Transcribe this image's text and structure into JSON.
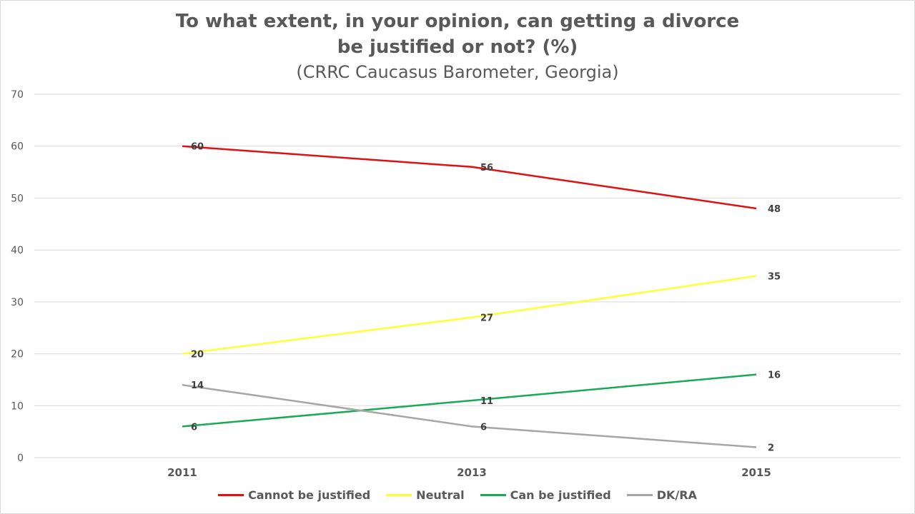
{
  "title_lines": [
    "To what extent, in your opinion, can getting a divorce",
    "be justified or not? (%)"
  ],
  "subtitle": "(CRRC Caucasus Barometer, Georgia)",
  "chart_data": {
    "type": "line",
    "x": [
      "2011",
      "2013",
      "2015"
    ],
    "ylim": [
      0,
      70
    ],
    "yticks": [
      0,
      10,
      20,
      30,
      40,
      50,
      60,
      70
    ],
    "grid": true,
    "legend_position": "bottom",
    "series": [
      {
        "name": "Cannot be justified",
        "color": "#e01010",
        "values": [
          60,
          56,
          48
        ],
        "labels": [
          "60",
          "56",
          "48"
        ]
      },
      {
        "name": "Neutral",
        "color": "#ffff33",
        "values": [
          20,
          27,
          35
        ],
        "labels": [
          "20",
          "27",
          "35"
        ]
      },
      {
        "name": "Can be justified",
        "color": "#1aaa55",
        "values": [
          6,
          11,
          16
        ],
        "labels": [
          "6",
          "11",
          "16"
        ]
      },
      {
        "name": "DK/RA",
        "color": "#a6a6a6",
        "values": [
          14,
          6,
          2
        ],
        "labels": [
          "14",
          "6",
          "2"
        ]
      }
    ]
  }
}
